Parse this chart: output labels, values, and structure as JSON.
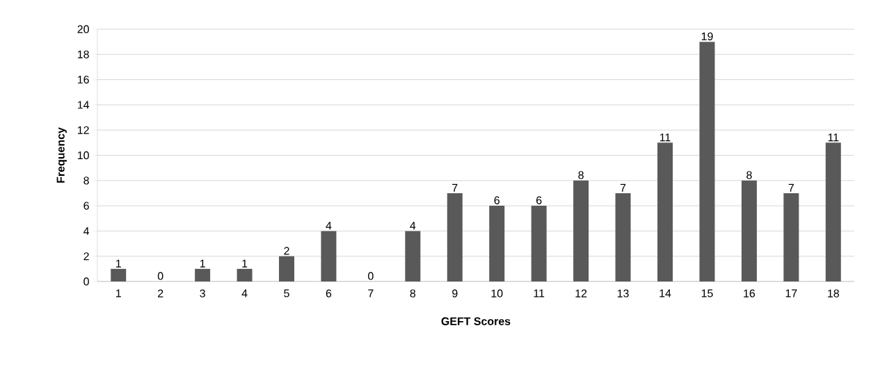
{
  "chart_data": {
    "type": "bar",
    "xlabel": "GEFT Scores",
    "ylabel": "Frequency",
    "categories": [
      "1",
      "2",
      "3",
      "4",
      "5",
      "6",
      "7",
      "8",
      "9",
      "10",
      "11",
      "12",
      "13",
      "14",
      "15",
      "16",
      "17",
      "18"
    ],
    "values": [
      1,
      0,
      1,
      1,
      2,
      4,
      0,
      4,
      7,
      6,
      6,
      8,
      7,
      11,
      19,
      8,
      7,
      11
    ],
    "color": "#595959",
    "ylim": [
      0,
      20
    ],
    "yticks": [
      0,
      2,
      4,
      6,
      8,
      10,
      12,
      14,
      16,
      18,
      20
    ],
    "grid": "y",
    "data_labels": true
  }
}
